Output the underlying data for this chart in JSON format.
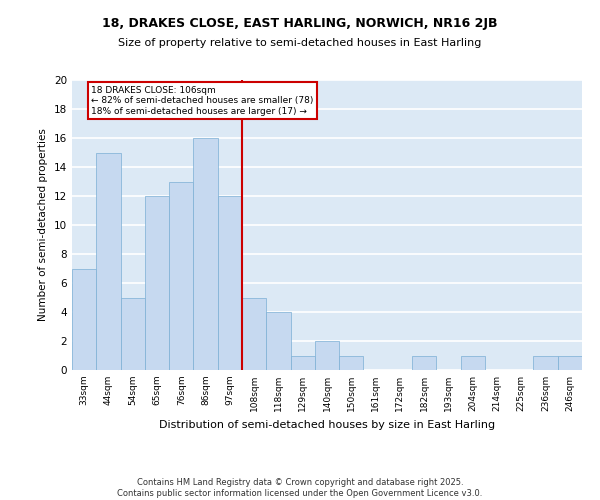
{
  "title1": "18, DRAKES CLOSE, EAST HARLING, NORWICH, NR16 2JB",
  "title2": "Size of property relative to semi-detached houses in East Harling",
  "xlabel": "Distribution of semi-detached houses by size in East Harling",
  "ylabel": "Number of semi-detached properties",
  "categories": [
    "33sqm",
    "44sqm",
    "54sqm",
    "65sqm",
    "76sqm",
    "86sqm",
    "97sqm",
    "108sqm",
    "118sqm",
    "129sqm",
    "140sqm",
    "150sqm",
    "161sqm",
    "172sqm",
    "182sqm",
    "193sqm",
    "204sqm",
    "214sqm",
    "225sqm",
    "236sqm",
    "246sqm"
  ],
  "values": [
    7,
    15,
    5,
    12,
    13,
    16,
    12,
    5,
    4,
    1,
    2,
    1,
    0,
    0,
    1,
    0,
    1,
    0,
    0,
    1,
    1
  ],
  "bar_color": "#c6d9f0",
  "bar_edge_color": "#7bafd4",
  "subject_line_label": "18 DRAKES CLOSE: 106sqm",
  "pct_smaller": "82% of semi-detached houses are smaller (78)",
  "pct_larger": "18% of semi-detached houses are larger (17)",
  "annotation_box_color": "#cc0000",
  "ylim": [
    0,
    20
  ],
  "yticks": [
    0,
    2,
    4,
    6,
    8,
    10,
    12,
    14,
    16,
    18,
    20
  ],
  "background_color": "#dce9f5",
  "grid_color": "#ffffff",
  "footer": "Contains HM Land Registry data © Crown copyright and database right 2025.\nContains public sector information licensed under the Open Government Licence v3.0."
}
